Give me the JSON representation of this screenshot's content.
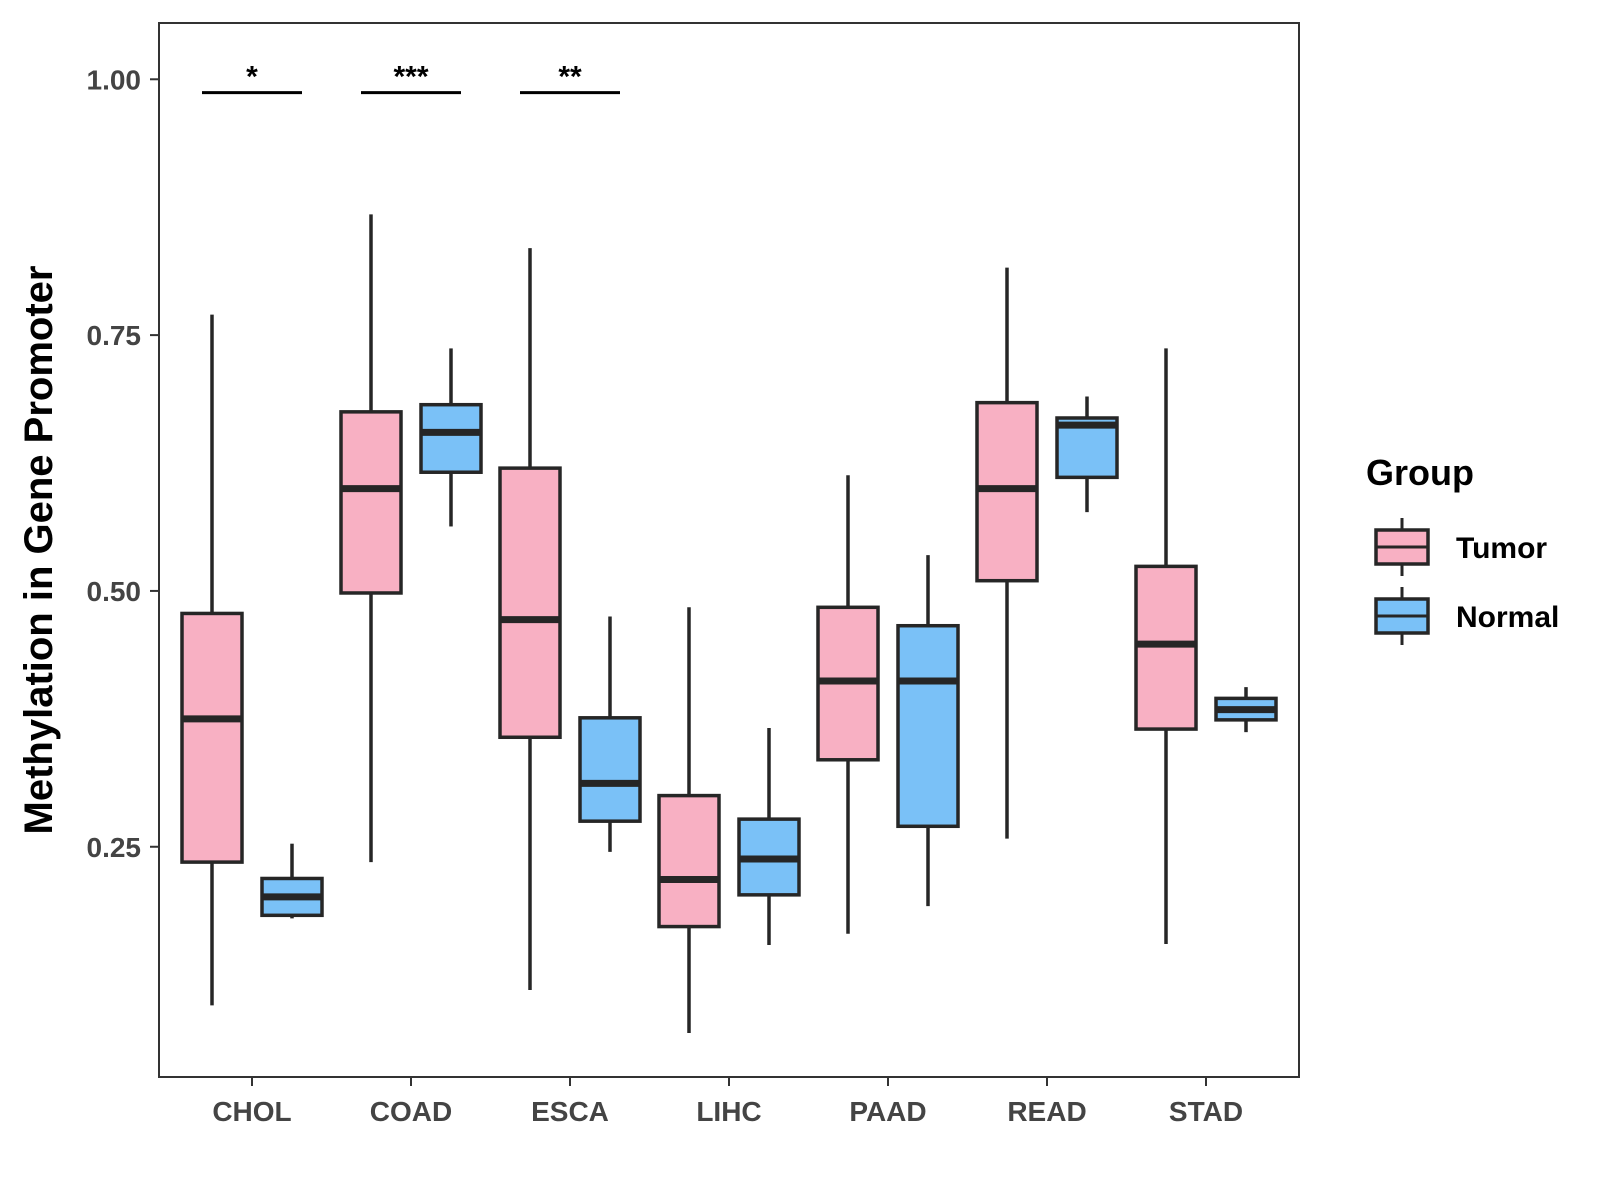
{
  "chart_data": {
    "type": "boxplot",
    "title": "",
    "xlabel": "",
    "ylabel": "Methylation in Gene Promoter",
    "ylim": [
      0.025,
      1.055
    ],
    "yticks": [
      0.25,
      0.5,
      0.75,
      1.0
    ],
    "ytick_labels": [
      "0.25",
      "0.50",
      "0.75",
      "1.00"
    ],
    "grid": false,
    "legend": {
      "title": "Group",
      "position": "right"
    },
    "categories": [
      "CHOL",
      "COAD",
      "ESCA",
      "LIHC",
      "PAAD",
      "READ",
      "STAD"
    ],
    "series": [
      {
        "name": "Tumor",
        "color": "#F8B0C3",
        "boxes": [
          {
            "min": 0.095,
            "q1": 0.235,
            "median": 0.375,
            "q3": 0.478,
            "max": 0.77
          },
          {
            "min": 0.235,
            "q1": 0.498,
            "median": 0.6,
            "q3": 0.675,
            "max": 0.868
          },
          {
            "min": 0.11,
            "q1": 0.357,
            "median": 0.472,
            "q3": 0.62,
            "max": 0.835
          },
          {
            "min": 0.068,
            "q1": 0.172,
            "median": 0.218,
            "q3": 0.3,
            "max": 0.484
          },
          {
            "min": 0.165,
            "q1": 0.335,
            "median": 0.412,
            "q3": 0.484,
            "max": 0.613
          },
          {
            "min": 0.258,
            "q1": 0.51,
            "median": 0.6,
            "q3": 0.684,
            "max": 0.816
          },
          {
            "min": 0.155,
            "q1": 0.365,
            "median": 0.448,
            "q3": 0.524,
            "max": 0.737
          }
        ]
      },
      {
        "name": "Normal",
        "color": "#7AC1F7",
        "boxes": [
          {
            "min": 0.18,
            "q1": 0.183,
            "median": 0.201,
            "q3": 0.219,
            "max": 0.253
          },
          {
            "min": 0.563,
            "q1": 0.616,
            "median": 0.655,
            "q3": 0.682,
            "max": 0.737
          },
          {
            "min": 0.245,
            "q1": 0.275,
            "median": 0.312,
            "q3": 0.376,
            "max": 0.475
          },
          {
            "min": 0.154,
            "q1": 0.203,
            "median": 0.238,
            "q3": 0.277,
            "max": 0.366
          },
          {
            "min": 0.192,
            "q1": 0.27,
            "median": 0.412,
            "q3": 0.466,
            "max": 0.535
          },
          {
            "min": 0.577,
            "q1": 0.611,
            "median": 0.662,
            "q3": 0.669,
            "max": 0.69
          },
          {
            "min": 0.362,
            "q1": 0.374,
            "median": 0.384,
            "q3": 0.395,
            "max": 0.406
          }
        ]
      }
    ],
    "annotations": [
      {
        "category": "CHOL",
        "label": "*",
        "y": 0.987
      },
      {
        "category": "COAD",
        "label": "***",
        "y": 0.987
      },
      {
        "category": "ESCA",
        "label": "**",
        "y": 0.987
      }
    ]
  }
}
